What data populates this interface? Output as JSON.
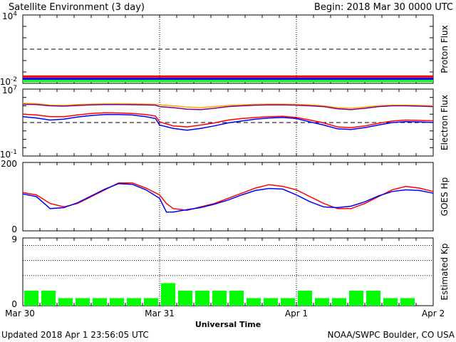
{
  "header": {
    "title": "Satellite Environment (3 day)",
    "begin": "Begin:  2018 Mar 30 0000 UTC"
  },
  "footer": {
    "updated": "Updated 2018 Apr  1 23:56:05 UTC",
    "credit": "NOAA/SWPC Boulder, CO USA",
    "xlabel": "Universal Time"
  },
  "x_ticks": [
    "Mar 30",
    "Mar 31",
    "Apr 1",
    "Apr 2"
  ],
  "colors": {
    "red": "#ff0000",
    "blue": "#0000ff",
    "green": "#00ff00",
    "orange": "#ffa500",
    "purple": "#800080",
    "kp_bar": "#00ff00"
  },
  "chart_data": [
    {
      "type": "line",
      "ylabel": "Proton Flux",
      "y_scale": "log",
      "ylim": [
        0.01,
        10000
      ],
      "y_ticks": [
        {
          "base": "10",
          "exp": "4"
        },
        {
          "base": "10",
          "exp": "-2"
        }
      ],
      "threshold": 10,
      "x_days": [
        0,
        0.25,
        0.5,
        0.75,
        1,
        1.25,
        1.5,
        1.75,
        2,
        2.25,
        2.5,
        2.75,
        3
      ],
      "series": [
        {
          "color": "red",
          "values": [
            0.04,
            0.04,
            0.04,
            0.04,
            0.04,
            0.04,
            0.04,
            0.04,
            0.04,
            0.04,
            0.04,
            0.04,
            0.04
          ]
        },
        {
          "color": "blue",
          "values": [
            0.025,
            0.025,
            0.025,
            0.025,
            0.025,
            0.025,
            0.025,
            0.025,
            0.025,
            0.025,
            0.025,
            0.025,
            0.025
          ]
        },
        {
          "color": "green",
          "values": [
            0.016,
            0.016,
            0.016,
            0.016,
            0.016,
            0.016,
            0.016,
            0.016,
            0.016,
            0.016,
            0.016,
            0.016,
            0.016
          ]
        }
      ]
    },
    {
      "type": "line",
      "ylabel": "Electron Flux",
      "y_scale": "log",
      "ylim": [
        0.1,
        10000000
      ],
      "y_ticks": [
        {
          "base": "10",
          "exp": "7"
        },
        {
          "base": "10",
          "exp": "-1"
        }
      ],
      "threshold": 1000,
      "x_days": [
        0,
        0.1,
        0.2,
        0.3,
        0.4,
        0.5,
        0.6,
        0.7,
        0.8,
        0.9,
        0.97,
        1.0,
        1.1,
        1.2,
        1.3,
        1.4,
        1.5,
        1.6,
        1.7,
        1.8,
        1.9,
        2.0,
        2.1,
        2.2,
        2.3,
        2.4,
        2.5,
        2.6,
        2.7,
        2.8,
        2.9,
        3.0
      ],
      "series": [
        {
          "color": "orange",
          "values": [
            200000,
            180000,
            120000,
            110000,
            140000,
            160000,
            170000,
            175000,
            170000,
            160000,
            150000,
            130000,
            100000,
            70000,
            60000,
            80000,
            110000,
            130000,
            150000,
            160000,
            160000,
            150000,
            130000,
            100000,
            60000,
            50000,
            70000,
            100000,
            120000,
            120000,
            110000,
            100000
          ]
        },
        {
          "color": "purple",
          "values": [
            150000,
            140000,
            100000,
            90000,
            110000,
            130000,
            140000,
            140000,
            135000,
            130000,
            120000,
            80000,
            60000,
            40000,
            35000,
            50000,
            80000,
            100000,
            120000,
            130000,
            130000,
            120000,
            100000,
            80000,
            45000,
            35000,
            50000,
            80000,
            100000,
            100000,
            90000,
            80000
          ]
        },
        {
          "color": "red",
          "values": [
            10000,
            8000,
            5000,
            5000,
            8000,
            12000,
            15000,
            14000,
            12000,
            9000,
            6000,
            1200,
            400,
            300,
            500,
            900,
            2000,
            3000,
            4000,
            5000,
            5500,
            4000,
            2000,
            900,
            300,
            250,
            400,
            800,
            1500,
            2000,
            1800,
            1600
          ]
        },
        {
          "color": "blue",
          "values": [
            5000,
            3500,
            2000,
            2500,
            4500,
            7000,
            9000,
            9000,
            8000,
            5000,
            3000,
            500,
            200,
            120,
            200,
            400,
            900,
            1500,
            2500,
            3500,
            4000,
            3000,
            1200,
            500,
            180,
            150,
            250,
            500,
            1000,
            1300,
            1200,
            1000
          ]
        }
      ]
    },
    {
      "type": "line",
      "ylabel": "GOES Hp",
      "y_scale": "linear",
      "ylim": [
        0,
        200
      ],
      "y_ticks": [
        {
          "label": "200",
          "value": 200
        },
        {
          "label": "0",
          "value": 0
        }
      ],
      "x_days": [
        0,
        0.1,
        0.2,
        0.3,
        0.4,
        0.5,
        0.6,
        0.7,
        0.8,
        0.9,
        1.0,
        1.05,
        1.1,
        1.2,
        1.3,
        1.4,
        1.5,
        1.6,
        1.7,
        1.8,
        1.9,
        2.0,
        2.1,
        2.2,
        2.3,
        2.4,
        2.5,
        2.6,
        2.7,
        2.8,
        2.9,
        3.0
      ],
      "series": [
        {
          "color": "red",
          "values": [
            112,
            105,
            80,
            70,
            80,
            100,
            120,
            140,
            140,
            125,
            105,
            80,
            65,
            60,
            70,
            80,
            95,
            110,
            125,
            135,
            130,
            120,
            100,
            80,
            65,
            65,
            80,
            100,
            120,
            130,
            125,
            115
          ]
        },
        {
          "color": "blue",
          "values": [
            108,
            100,
            65,
            68,
            82,
            102,
            122,
            138,
            136,
            120,
            95,
            55,
            55,
            62,
            68,
            78,
            90,
            105,
            118,
            124,
            122,
            105,
            85,
            70,
            68,
            72,
            85,
            102,
            115,
            120,
            118,
            110
          ]
        }
      ]
    },
    {
      "type": "bar",
      "ylabel": "Estimated Kp",
      "ylim": [
        0,
        9
      ],
      "y_ticks": [
        {
          "label": "9",
          "value": 9
        },
        {
          "label": "0",
          "value": 0
        }
      ],
      "gridlines": [
        4,
        6,
        8
      ],
      "x_start_days": [
        0,
        0.125,
        0.25,
        0.375,
        0.5,
        0.625,
        0.75,
        0.875,
        1.0,
        1.125,
        1.25,
        1.375,
        1.5,
        1.625,
        1.75,
        1.875,
        2.0,
        2.125,
        2.25,
        2.375,
        2.5,
        2.625,
        2.75,
        2.875
      ],
      "values": [
        2,
        2,
        1,
        1,
        1,
        1,
        1,
        1,
        3,
        2,
        2,
        2,
        2,
        1,
        1,
        1,
        2,
        1,
        1,
        2,
        2,
        1,
        1,
        0
      ]
    }
  ]
}
